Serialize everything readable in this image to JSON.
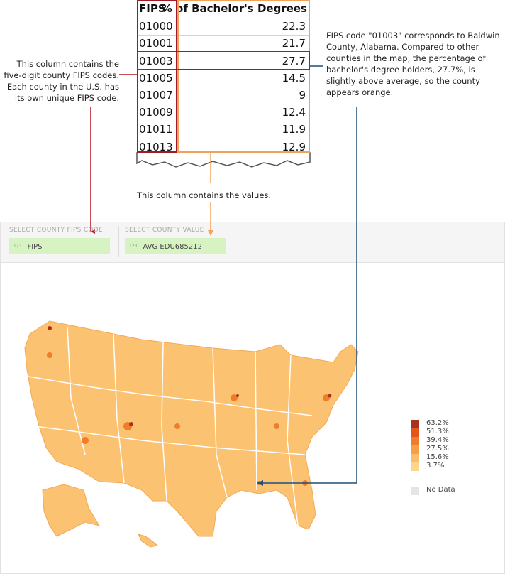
{
  "table": {
    "headers": [
      "FIPS",
      "% of Bachelor's Degrees"
    ],
    "rows": [
      [
        "01000",
        22.3
      ],
      [
        "01001",
        21.7
      ],
      [
        "01003",
        27.7
      ],
      [
        "01005",
        14.5
      ],
      [
        "01007",
        9
      ],
      [
        "01009",
        12.4
      ],
      [
        "01011",
        11.9
      ],
      [
        "01013",
        12.9
      ]
    ]
  },
  "annotations": {
    "fips_column": "This column contains the five-digit county FIPS codes. Each county in the U.S. has its own unique FIPS code.",
    "value_column": "This column contains the values.",
    "highlight": "FIPS code \"01003\" corresponds to Baldwin County, Alabama. Compared to other counties in the map, the percentage of bachelor's degree holders, 27.7%, is slightly above average, so the county appears orange."
  },
  "panel": {
    "fips_label": "SELECT COUNTY FIPS CODE",
    "fips_field": {
      "type": "123",
      "name": "FIPS"
    },
    "value_label": "SELECT COUNTY VALUE",
    "value_field": {
      "type": "123",
      "name": "AVG EDU685212"
    }
  },
  "legend": {
    "items": [
      {
        "label": "63.2%",
        "color": "#a8321e"
      },
      {
        "label": "51.3%",
        "color": "#e0561c"
      },
      {
        "label": "39.4%",
        "color": "#f07d2c"
      },
      {
        "label": "27.5%",
        "color": "#f59f48"
      },
      {
        "label": "15.6%",
        "color": "#fbbd6a"
      },
      {
        "label": "3.7%",
        "color": "#fdd58e"
      }
    ],
    "no_data": {
      "label": "No Data",
      "color": "#e5e5e5"
    }
  }
}
